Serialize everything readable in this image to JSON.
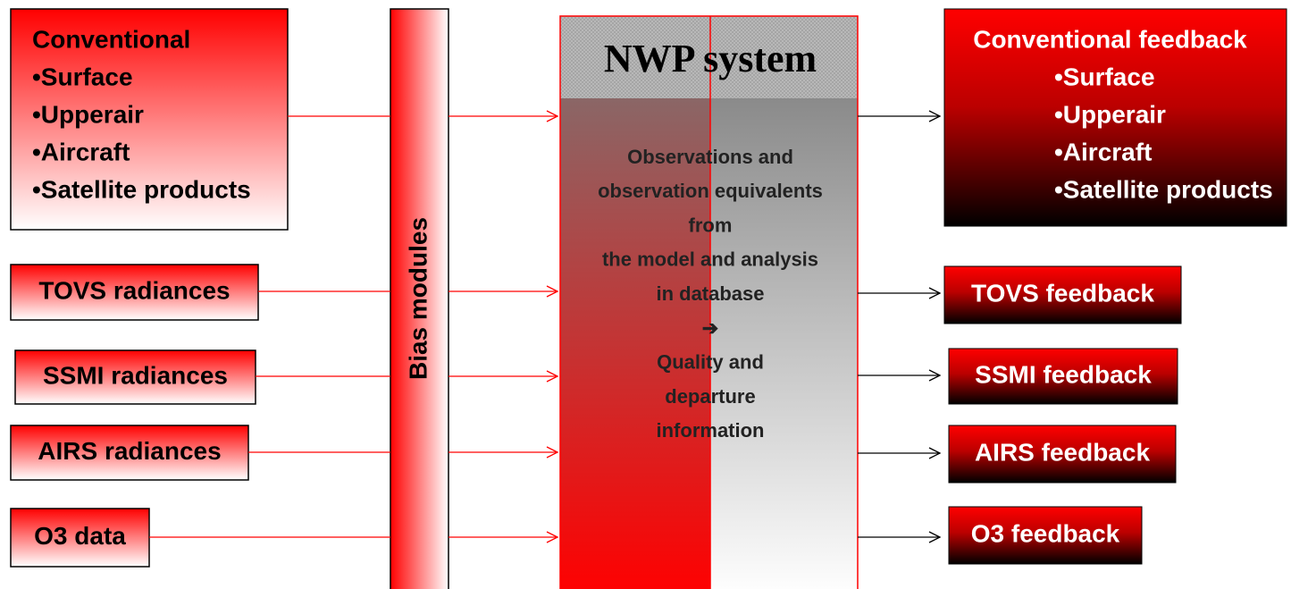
{
  "inputs": [
    {
      "lines": [
        "Conventional",
        "•Surface",
        "•Upperair",
        "•Aircraft",
        "•Satellite products"
      ]
    },
    {
      "lines": [
        "TOVS radiances"
      ]
    },
    {
      "lines": [
        "SSMI radiances"
      ]
    },
    {
      "lines": [
        "AIRS radiances"
      ]
    },
    {
      "lines": [
        "O3 data"
      ]
    }
  ],
  "bias_label": "Bias modules",
  "nwp": {
    "title": "NWP system",
    "lines": [
      "Observations and",
      "observation equivalents",
      "from",
      "the model and analysis",
      "in database",
      "➔",
      "Quality and",
      "departure",
      "information"
    ]
  },
  "outputs": [
    {
      "lines": [
        "Conventional feedback",
        "•Surface",
        "•Upperair",
        "•Aircraft",
        "•Satellite products"
      ]
    },
    {
      "lines": [
        "TOVS feedback"
      ]
    },
    {
      "lines": [
        "SSMI feedback"
      ]
    },
    {
      "lines": [
        "AIRS feedback"
      ]
    },
    {
      "lines": [
        "O3 feedback"
      ]
    }
  ]
}
